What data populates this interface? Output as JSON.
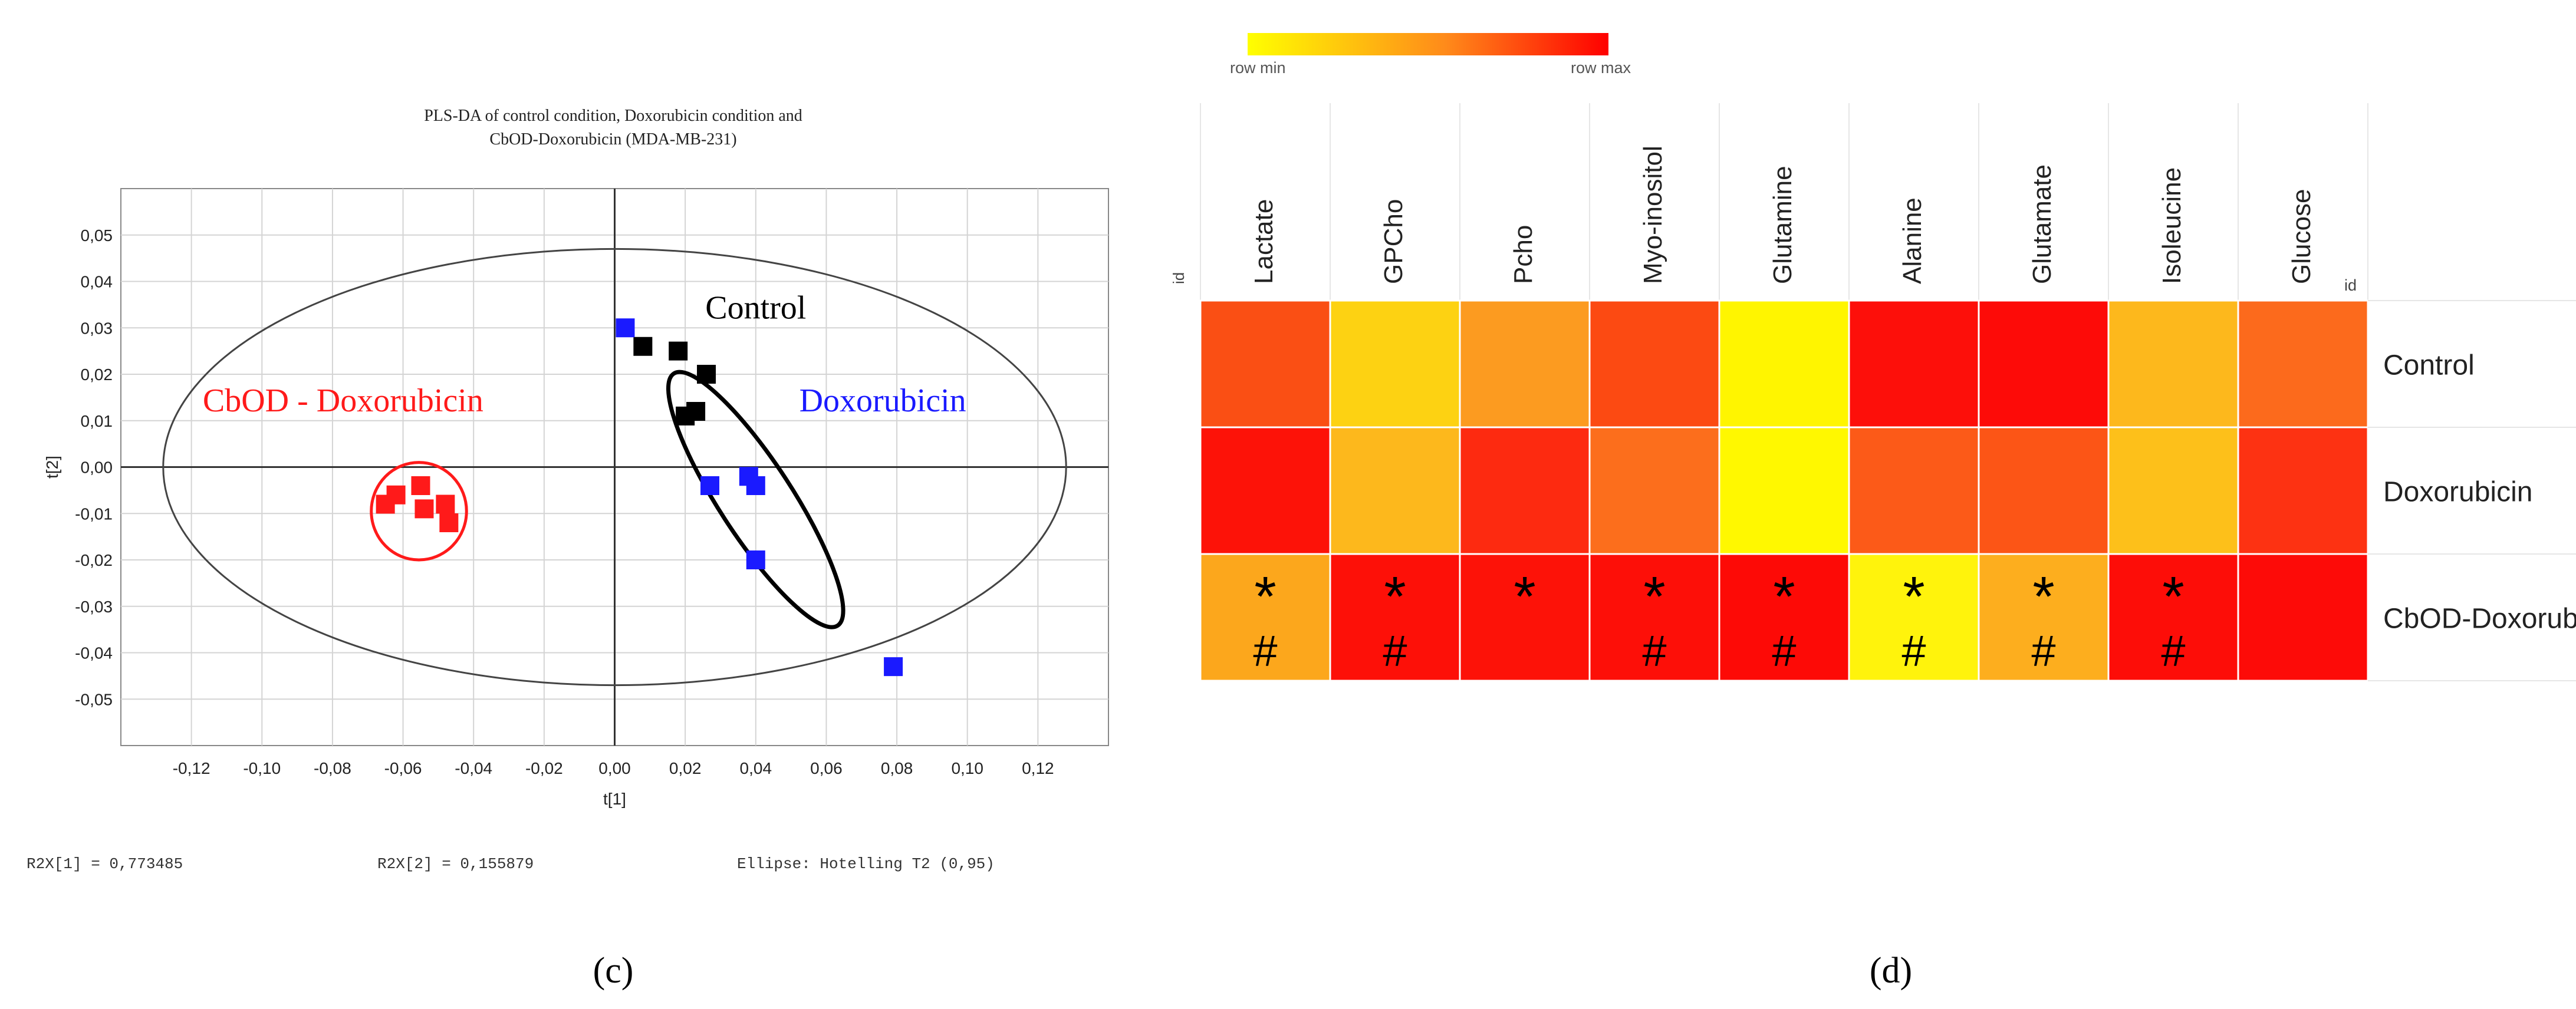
{
  "chart_data": [
    {
      "type": "scatter",
      "panel_label": "(c)",
      "title_line1": "PLS-DA of control condition, Doxorubicin condition and",
      "title_line2": "CbOD-Doxorubicin (MDA-MB-231)",
      "xlabel": "t[1]",
      "ylabel": "t[2]",
      "xlim": [
        -0.14,
        0.14
      ],
      "ylim": [
        -0.06,
        0.06
      ],
      "x_ticks": [
        "-0,12",
        "-0,10",
        "-0,08",
        "-0,06",
        "-0,04",
        "-0,02",
        "0,00",
        "0,02",
        "0,04",
        "0,06",
        "0,08",
        "0,10",
        "0,12"
      ],
      "x_tick_values": [
        -0.12,
        -0.1,
        -0.08,
        -0.06,
        -0.04,
        -0.02,
        0.0,
        0.02,
        0.04,
        0.06,
        0.08,
        0.1,
        0.12
      ],
      "y_ticks": [
        "0,05",
        "0,04",
        "0,03",
        "0,02",
        "0,01",
        "0,00",
        "-0,01",
        "-0,02",
        "-0,03",
        "-0,04",
        "-0,05"
      ],
      "y_tick_values": [
        0.05,
        0.04,
        0.03,
        0.02,
        0.01,
        0.0,
        -0.01,
        -0.02,
        -0.03,
        -0.04,
        -0.05
      ],
      "series": [
        {
          "name": "Control",
          "color": "#000000",
          "points": [
            [
              0.008,
              0.026
            ],
            [
              0.018,
              0.025
            ],
            [
              0.026,
              0.02
            ],
            [
              0.02,
              0.011
            ],
            [
              0.023,
              0.012
            ]
          ]
        },
        {
          "name": "Doxorubicin",
          "color": "#1a1aff",
          "points": [
            [
              0.003,
              0.03
            ],
            [
              0.027,
              -0.004
            ],
            [
              0.038,
              -0.002
            ],
            [
              0.04,
              -0.004
            ],
            [
              0.04,
              -0.02
            ],
            [
              0.079,
              -0.043
            ]
          ]
        },
        {
          "name": "CbOD - Doxorubicin",
          "color": "#ff1a1a",
          "points": [
            [
              -0.065,
              -0.008
            ],
            [
              -0.062,
              -0.006
            ],
            [
              -0.055,
              -0.004
            ],
            [
              -0.054,
              -0.009
            ],
            [
              -0.048,
              -0.008
            ],
            [
              -0.047,
              -0.012
            ]
          ]
        }
      ],
      "annotations": [
        {
          "text": "Control",
          "x": 0.04,
          "y": 0.032,
          "color": "#000000"
        },
        {
          "text": "Doxorubicin",
          "x": 0.076,
          "y": 0.012,
          "color": "#1a1aff"
        },
        {
          "text": "CbOD - Doxorubicin",
          "x": -0.077,
          "y": 0.012,
          "color": "#ff1a1a"
        }
      ],
      "hotelling_ellipse": {
        "cx": 0.0,
        "cy": 0.0,
        "rx": 0.128,
        "ry": 0.047,
        "angle": 0,
        "color": "#444444"
      },
      "group_ellipses": [
        {
          "name": "Control/Doxorubicin",
          "cx": 0.04,
          "cy": -0.007,
          "rx": 0.0445,
          "ry": 0.0095,
          "angle_deg": -50,
          "color": "#000000"
        },
        {
          "name": "CbOD",
          "cx": -0.0555,
          "cy": -0.0095,
          "rx": 0.0135,
          "ry": 0.0105,
          "angle_deg": 0,
          "color": "#ff1a1a"
        }
      ],
      "footer": {
        "r2x1": "R2X[1] = 0,773485",
        "r2x2": "R2X[2] = 0,155879",
        "ellipse": "Ellipse: Hotelling T2 (0,95)"
      }
    },
    {
      "type": "heatmap",
      "panel_label": "(d)",
      "legend": {
        "min_label": "row min",
        "max_label": "row max",
        "min_color": "#ffff00",
        "max_color": "#ff0000"
      },
      "id_label_left": "id",
      "id_label_right": "id",
      "columns": [
        "Lactate",
        "GPCho",
        "Pcho",
        "Myo-inositol",
        "Glutamine",
        "Alanine",
        "Glutamate",
        "Isoleucine",
        "Glucose"
      ],
      "rows": [
        "Control",
        "Doxorubicin",
        "CbOD-Doxorub"
      ],
      "cells": [
        [
          "#fa4f14",
          "#fdd212",
          "#fc9b20",
          "#fc4a12",
          "#fff500",
          "#fd0f0a",
          "#fd0b08",
          "#fdb81c",
          "#fc6a1c"
        ],
        [
          "#fd1208",
          "#fdb81c",
          "#fd2a10",
          "#fc6e1c",
          "#fff800",
          "#fc5a18",
          "#fc5516",
          "#fdc01a",
          "#fd3212"
        ],
        [
          "#fca71c",
          "#fd1008",
          "#fd1208",
          "#fd0f08",
          "#fd0a06",
          "#fff30c",
          "#fdae1e",
          "#fd0d08",
          "#fd0b08"
        ]
      ],
      "markers": [
        [
          "",
          "",
          "",
          "",
          "",
          "",
          "",
          "",
          ""
        ],
        [
          "",
          "",
          "",
          "",
          "",
          "",
          "",
          "",
          ""
        ],
        [
          "*#",
          "*#",
          "*",
          "*#",
          "*#",
          "*#",
          "*#",
          "*#",
          ""
        ]
      ],
      "marker_star": "*",
      "marker_hash": "#"
    }
  ]
}
